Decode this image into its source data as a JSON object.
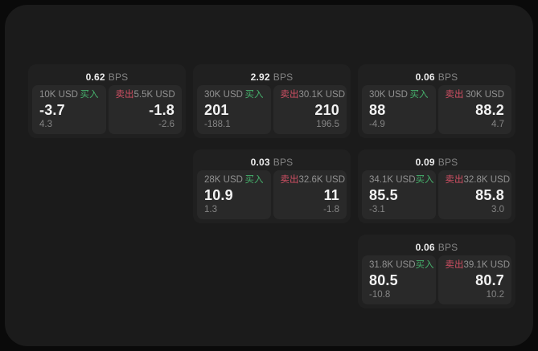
{
  "page": {
    "bps_suffix": "BPS",
    "buy_label": "买入",
    "sell_label": "卖出"
  },
  "colors": {
    "outer_background": "#0a0a0a",
    "window_background": "#1b1b1b",
    "card_background": "#202020",
    "tile_background": "#292929",
    "buy_green": "#46b06c",
    "sell_red": "#cf4f63",
    "primary_text": "#f2f2f2",
    "secondary_text": "#929292",
    "muted_text": "#858585"
  },
  "cards": [
    {
      "bps": "0.62",
      "col": 1,
      "row": 1,
      "buy": {
        "amount": "10K USD",
        "price": "-3.7",
        "delta": "4.3"
      },
      "sell": {
        "amount": "5.5K USD",
        "price": "-1.8",
        "delta": "-2.6"
      }
    },
    {
      "bps": "2.92",
      "col": 2,
      "row": 1,
      "buy": {
        "amount": "30K USD",
        "price": "201",
        "delta": "-188.1"
      },
      "sell": {
        "amount": "30.1K USD",
        "price": "210",
        "delta": "196.5"
      }
    },
    {
      "bps": "0.06",
      "col": 3,
      "row": 1,
      "buy": {
        "amount": "30K USD",
        "price": "88",
        "delta": "-4.9"
      },
      "sell": {
        "amount": "30K USD",
        "price": "88.2",
        "delta": "4.7"
      }
    },
    {
      "bps": "0.03",
      "col": 2,
      "row": 2,
      "buy": {
        "amount": "28K USD",
        "price": "10.9",
        "delta": "1.3"
      },
      "sell": {
        "amount": "32.6K USD",
        "price": "11",
        "delta": "-1.8"
      }
    },
    {
      "bps": "0.09",
      "col": 3,
      "row": 2,
      "buy": {
        "amount": "34.1K USD",
        "price": "85.5",
        "delta": "-3.1"
      },
      "sell": {
        "amount": "32.8K USD",
        "price": "85.8",
        "delta": "3.0"
      }
    },
    {
      "bps": "0.06",
      "col": 3,
      "row": 3,
      "buy": {
        "amount": "31.8K USD",
        "price": "80.5",
        "delta": "-10.8"
      },
      "sell": {
        "amount": "39.1K USD",
        "price": "80.7",
        "delta": "10.2"
      }
    }
  ]
}
